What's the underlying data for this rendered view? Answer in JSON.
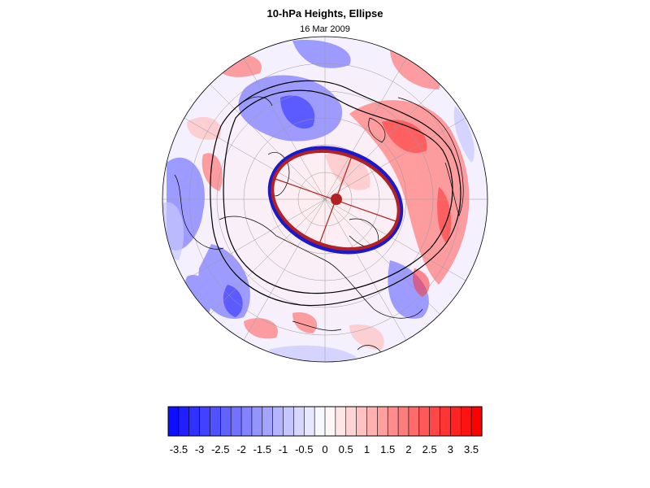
{
  "title": "10-hPa Heights, Ellipse",
  "subtitle": "16 Mar 2009",
  "colorbar": {
    "tick_labels": [
      "-3.5",
      "-3",
      "-2.5",
      "-2",
      "-1.5",
      "-1",
      "-0.5",
      "0",
      "0.5",
      "1",
      "1.5",
      "2",
      "2.5",
      "3",
      "3.5"
    ],
    "min": -3.75,
    "max": 3.75,
    "levels": 30,
    "colors": {
      "negative_end": "#0000ff",
      "neutral": "#ffffff",
      "positive_end": "#ff0000"
    }
  },
  "map": {
    "projection": "polar-stereographic",
    "hemisphere": "northern",
    "field": "10-hPa height anomaly",
    "contour_color": "#000000",
    "ellipse": {
      "color_outer": "#1a1acc",
      "color_inner": "#b22222",
      "center_marker_color": "#b22222"
    }
  }
}
